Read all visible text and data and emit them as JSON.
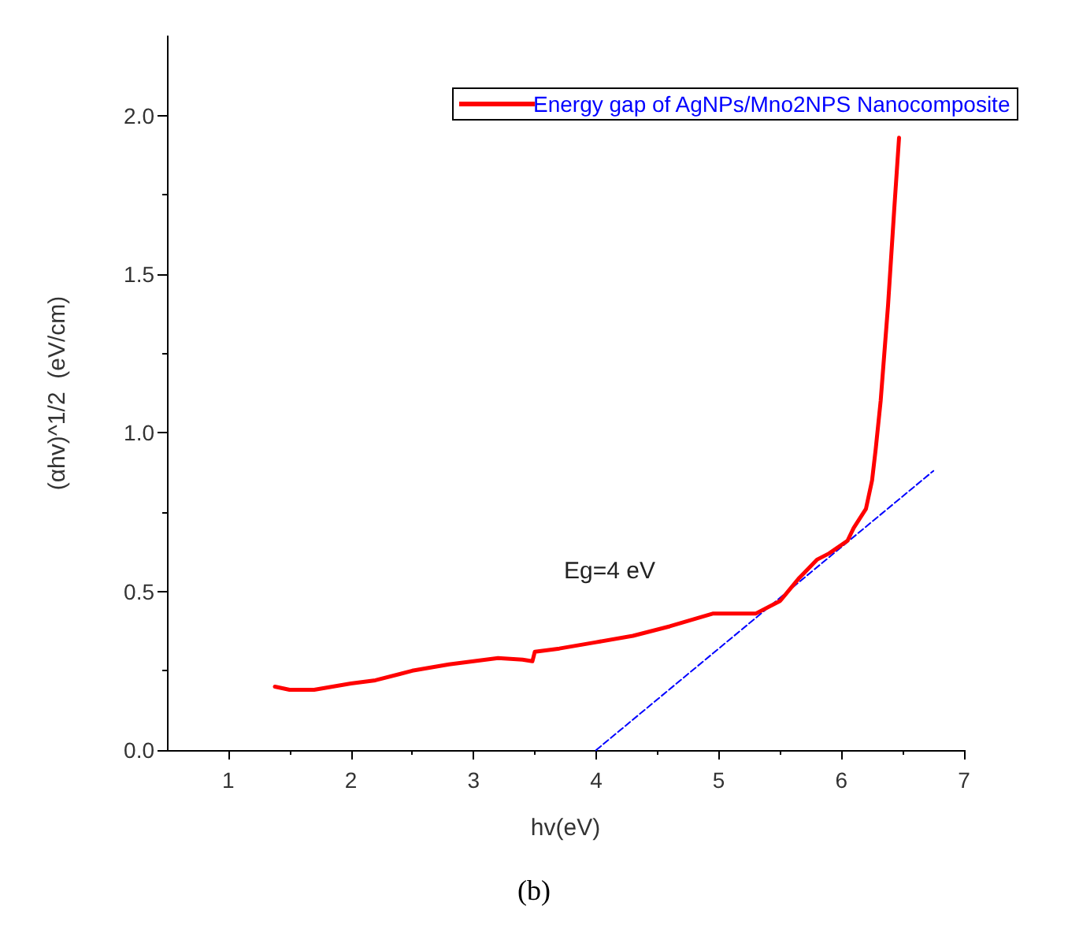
{
  "chart_data": {
    "type": "line",
    "xlabel": "hv(eV)",
    "ylabel": "(αhv)^1/2  (eV/cm)",
    "annotations": [
      "Eg=4 eV",
      "(b)"
    ],
    "xlim": [
      0.5,
      7
    ],
    "xticks": [
      1,
      2,
      3,
      4,
      5,
      6,
      7
    ],
    "ylim": [
      0,
      2.25
    ],
    "yticks": [
      {
        "value": 0,
        "label": "0.0"
      },
      {
        "value": 0.5,
        "label": "0.5"
      },
      {
        "value": 1,
        "label": "1.0"
      },
      {
        "value": 1.5,
        "label": "1.5"
      },
      {
        "value": 2,
        "label": "2.0"
      }
    ],
    "grid": false,
    "legend": "top right",
    "marker": "none",
    "series": [
      {
        "name": "Energy gap of AgNPs/Mno2NPS Nanocomposite",
        "color": "#ff0000",
        "line_style": "solid",
        "x": [
          1.38,
          1.5,
          1.7,
          1.85,
          2.0,
          2.2,
          2.5,
          2.8,
          3.0,
          3.2,
          3.4,
          3.48,
          3.5,
          3.7,
          4.0,
          4.3,
          4.6,
          4.95,
          5.3,
          5.5,
          5.65,
          5.8,
          5.9,
          6.05,
          6.1,
          6.2,
          6.25,
          6.28,
          6.32,
          6.38,
          6.43,
          6.47
        ],
        "values": [
          0.2,
          0.19,
          0.19,
          0.2,
          0.21,
          0.22,
          0.25,
          0.27,
          0.28,
          0.29,
          0.285,
          0.28,
          0.31,
          0.32,
          0.34,
          0.36,
          0.39,
          0.43,
          0.43,
          0.47,
          0.54,
          0.6,
          0.62,
          0.66,
          0.7,
          0.76,
          0.85,
          0.95,
          1.1,
          1.4,
          1.7,
          1.93
        ]
      },
      {
        "color": "#0000ff",
        "line_style": "dashed",
        "x": [
          4.0,
          6.75
        ],
        "values": [
          0,
          0.88
        ]
      }
    ]
  }
}
